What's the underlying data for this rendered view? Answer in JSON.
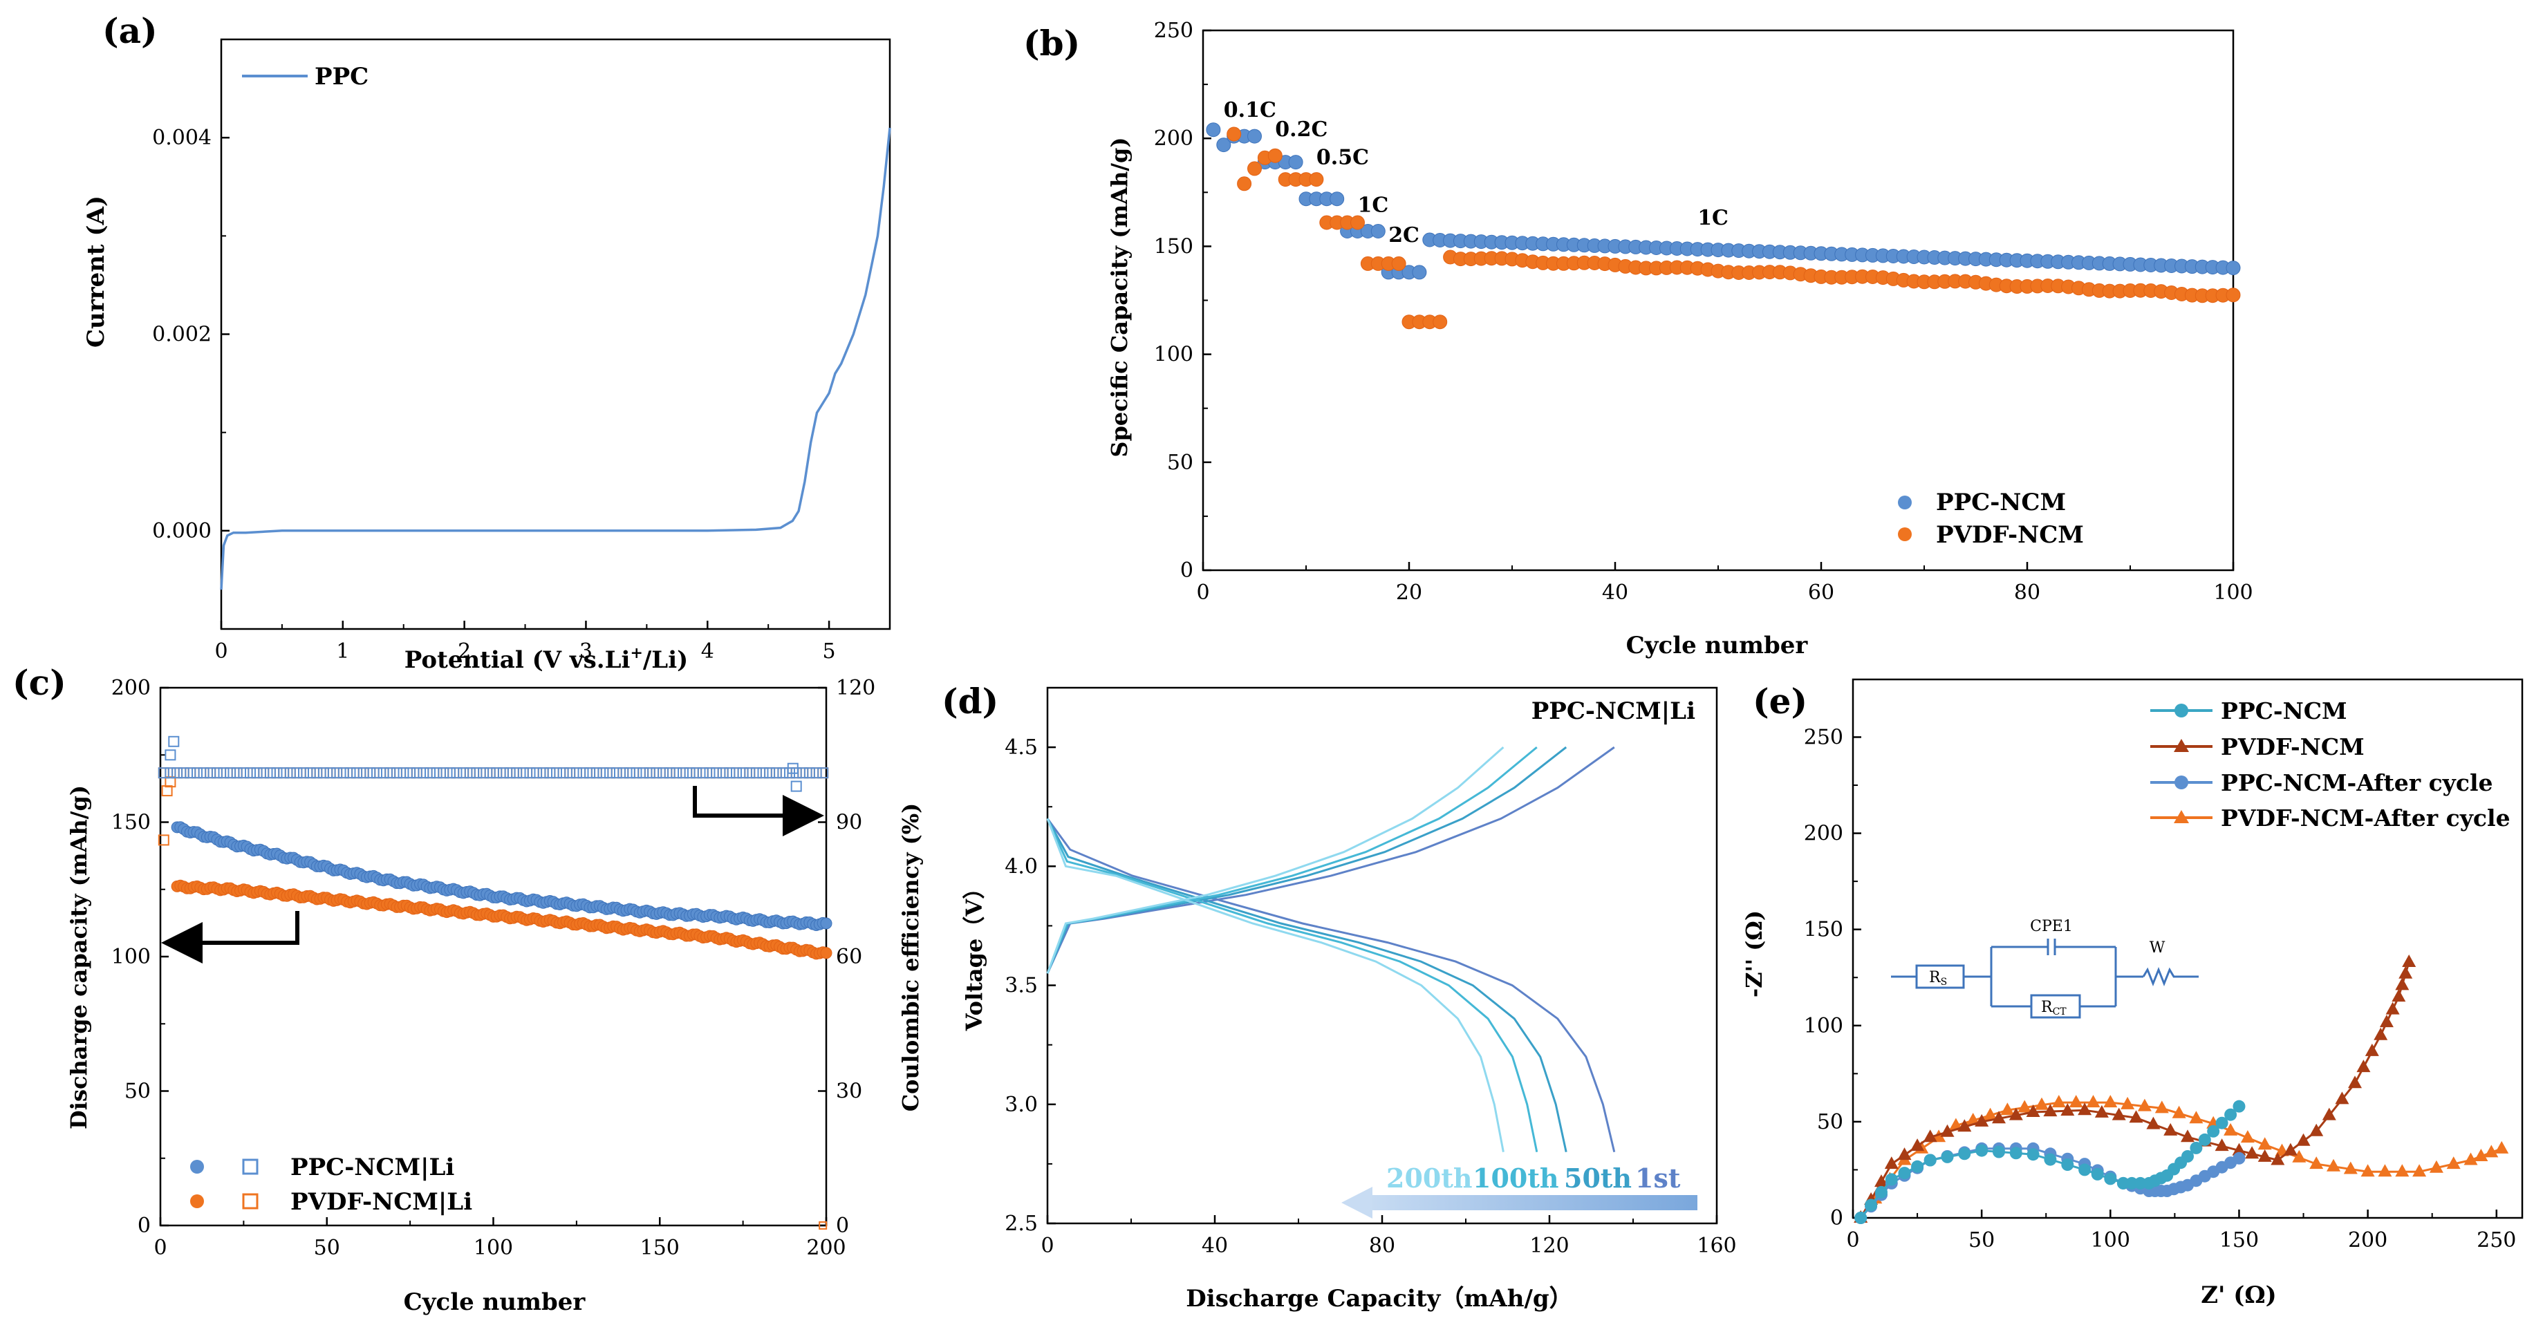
{
  "colors": {
    "axis": "#000000",
    "ppc_blue": "#5b8fd0",
    "ppc_blue_dark": "#3f74bb",
    "pvdf_orange": "#ef7420",
    "pvdf_orange_dark": "#e26316",
    "cyan": "#3aa6c4",
    "brown": "#a83c14",
    "d_light": "#8fd9ef",
    "d_mid": "#45b8d6",
    "d_dark": "#5e82c8",
    "arrow_grad_start": "#c8dcf3",
    "arrow_grad_end": "#7aa7dc"
  },
  "chart_data": [
    {
      "panel": "(a)",
      "type": "line",
      "xlabel": "Potential (V vs.Li",
      "xlabel_sup": "+",
      "xlabel_tail": "/Li)",
      "ylabel": "Current (A)",
      "xlim": [
        0,
        5.5
      ],
      "ylim": [
        -0.001,
        0.005
      ],
      "xticks": [
        0,
        1,
        2,
        3,
        4,
        5
      ],
      "xtick_labels": [
        "0",
        "1",
        "2",
        "3",
        "4",
        "5"
      ],
      "yticks": [
        0,
        0.002,
        0.004
      ],
      "ytick_labels": [
        "0.000",
        "0.002",
        "0.004"
      ],
      "legend": [
        "PPC"
      ],
      "series": [
        {
          "name": "PPC",
          "x": [
            0.0,
            0.02,
            0.05,
            0.1,
            0.2,
            0.5,
            1.0,
            1.5,
            2.0,
            2.5,
            3.0,
            3.5,
            4.0,
            4.4,
            4.6,
            4.7,
            4.75,
            4.8,
            4.85,
            4.9,
            4.95,
            5.0,
            5.05,
            5.1,
            5.2,
            5.3,
            5.4,
            5.45,
            5.5
          ],
          "y": [
            -0.0006,
            -0.00015,
            -5e-05,
            -2e-05,
            -2e-05,
            0.0,
            0.0,
            0.0,
            0.0,
            0.0,
            0.0,
            0.0,
            0.0,
            1e-05,
            3e-05,
            0.0001,
            0.0002,
            0.0005,
            0.0009,
            0.0012,
            0.0013,
            0.0014,
            0.0016,
            0.0017,
            0.002,
            0.0024,
            0.003,
            0.0035,
            0.0041
          ]
        }
      ]
    },
    {
      "panel": "(b)",
      "type": "scatter",
      "xlabel": "Cycle number",
      "ylabel": "Specific Capacity (mAh/g)",
      "xlim": [
        0,
        100
      ],
      "ylim": [
        0,
        250
      ],
      "xticks": [
        0,
        20,
        40,
        60,
        80,
        100
      ],
      "xtick_labels": [
        "0",
        "20",
        "40",
        "60",
        "80",
        "100"
      ],
      "yticks": [
        0,
        50,
        100,
        150,
        200,
        250
      ],
      "ytick_labels": [
        "0",
        "50",
        "100",
        "150",
        "200",
        "250"
      ],
      "legend": [
        "PPC-NCM",
        "PVDF-NCM"
      ],
      "annotations": [
        {
          "text": "0.1C",
          "x": 2,
          "y": 210
        },
        {
          "text": "0.2C",
          "x": 7,
          "y": 201
        },
        {
          "text": "0.5C",
          "x": 11,
          "y": 188
        },
        {
          "text": "1C",
          "x": 15,
          "y": 166
        },
        {
          "text": "2C",
          "x": 18,
          "y": 152
        },
        {
          "text": "1C",
          "x": 48,
          "y": 160
        }
      ],
      "series": [
        {
          "name": "PPC-NCM",
          "segments": [
            {
              "from": 1,
              "to": 1,
              "start": 204,
              "end": 204
            },
            {
              "from": 2,
              "to": 2,
              "start": 197,
              "end": 197
            },
            {
              "from": 3,
              "to": 5,
              "start": 201,
              "end": 201
            },
            {
              "from": 6,
              "to": 9,
              "start": 189,
              "end": 189
            },
            {
              "from": 10,
              "to": 13,
              "start": 172,
              "end": 172
            },
            {
              "from": 14,
              "to": 17,
              "start": 157,
              "end": 157
            },
            {
              "from": 18,
              "to": 21,
              "start": 138,
              "end": 138
            },
            {
              "from": 22,
              "to": 100,
              "start": 153,
              "end": 140
            }
          ]
        },
        {
          "name": "PVDF-NCM",
          "segments": [
            {
              "from": 3,
              "to": 3,
              "start": 202,
              "end": 202
            },
            {
              "from": 4,
              "to": 4,
              "start": 179,
              "end": 179
            },
            {
              "from": 5,
              "to": 5,
              "start": 186,
              "end": 186
            },
            {
              "from": 6,
              "to": 7,
              "start": 191,
              "end": 192
            },
            {
              "from": 8,
              "to": 11,
              "start": 181,
              "end": 181
            },
            {
              "from": 12,
              "to": 15,
              "start": 161,
              "end": 161
            },
            {
              "from": 16,
              "to": 19,
              "start": 142,
              "end": 142
            },
            {
              "from": 20,
              "to": 23,
              "start": 115,
              "end": 115
            },
            {
              "from": 24,
              "to": 100,
              "start": 145,
              "end": 127
            }
          ]
        }
      ]
    },
    {
      "panel": "(c)",
      "type": "scatter",
      "xlabel": "Cycle number",
      "ylabel": "Discharge capacity (mAh/g)",
      "ylabel_right": "Coulombic efficiency (%)",
      "xlim": [
        0,
        200
      ],
      "ylim": [
        0,
        200
      ],
      "ylim_right": [
        0,
        120
      ],
      "xticks": [
        0,
        50,
        100,
        150,
        200
      ],
      "xtick_labels": [
        "0",
        "50",
        "100",
        "150",
        "200"
      ],
      "yticks": [
        0,
        50,
        100,
        150,
        200
      ],
      "ytick_labels": [
        "0",
        "50",
        "100",
        "150",
        "200"
      ],
      "yticks_right": [
        0,
        30,
        60,
        90,
        120
      ],
      "ytick_labels_right": [
        "0",
        "30",
        "60",
        "90",
        "120"
      ],
      "legend": [
        "PPC-NCM|Li",
        "PVDF-NCM|Li"
      ],
      "series": [
        {
          "name": "PPC-NCM|Li capacity",
          "from": 5,
          "to": 200,
          "values": [
            148,
            142,
            137,
            132,
            128,
            125,
            122,
            120,
            118,
            116,
            115,
            113,
            112
          ]
        },
        {
          "name": "PVDF-NCM|Li capacity",
          "from": 5,
          "to": 200,
          "values": [
            126,
            125,
            123,
            121,
            119,
            117,
            115,
            113,
            111,
            109,
            107,
            104,
            101
          ]
        },
        {
          "name": "PPC-NCM|Li efficiency",
          "from": 1,
          "to": 200,
          "values": [
            101,
            101,
            101,
            101,
            101
          ],
          "outliers": [
            {
              "x": 3,
              "y": 105
            },
            {
              "x": 4,
              "y": 108
            },
            {
              "x": 190,
              "y": 102
            },
            {
              "x": 191,
              "y": 98
            }
          ]
        },
        {
          "name": "PVDF-NCM|Li efficiency",
          "from": 1,
          "to": 200,
          "values": [
            101,
            101,
            101,
            101,
            101
          ],
          "outliers": [
            {
              "x": 1,
              "y": 86
            },
            {
              "x": 2,
              "y": 97
            },
            {
              "x": 3,
              "y": 99
            }
          ]
        }
      ]
    },
    {
      "panel": "(d)",
      "type": "line",
      "title": "PPC-NCM|Li",
      "xlabel": "Discharge Capacity（mAh/g）",
      "ylabel": "Voltage（V）",
      "xlim": [
        0,
        160
      ],
      "ylim": [
        2.5,
        4.75
      ],
      "xticks": [
        0,
        40,
        80,
        120,
        160
      ],
      "xtick_labels": [
        "0",
        "40",
        "80",
        "120",
        "160"
      ],
      "yticks": [
        2.5,
        3.0,
        3.5,
        4.0,
        4.5
      ],
      "ytick_labels": [
        "2.5",
        "3.0",
        "3.5",
        "4.0",
        "4.5"
      ],
      "legend": [
        "200th",
        "100th",
        "50th",
        "1st"
      ],
      "series": [
        {
          "name": "1st",
          "qmax": 135.5
        },
        {
          "name": "50th",
          "qmax": 124
        },
        {
          "name": "100th",
          "qmax": 117
        },
        {
          "name": "200th",
          "qmax": 109
        }
      ]
    },
    {
      "panel": "(e)",
      "type": "scatter",
      "xlabel": "Z' (Ω)",
      "ylabel": "-Z'' (Ω)",
      "xlim": [
        0,
        260
      ],
      "ylim": [
        0,
        280
      ],
      "xticks": [
        0,
        50,
        100,
        150,
        200,
        250
      ],
      "xtick_labels": [
        "0",
        "50",
        "100",
        "150",
        "200",
        "250"
      ],
      "yticks": [
        0,
        50,
        100,
        150,
        200,
        250
      ],
      "ytick_labels": [
        "0",
        "50",
        "100",
        "150",
        "200",
        "250"
      ],
      "legend": [
        "PPC-NCM",
        "PVDF-NCM",
        "PPC-NCM-After cycle",
        "PVDF-NCM-After cycle"
      ],
      "circuit_labels": {
        "r1": "R",
        "r1_sub": "S",
        "cpe": "CPE1",
        "r2": "R",
        "r2_sub": "CT",
        "w": "W"
      },
      "series": [
        {
          "name": "PPC-NCM",
          "x": [
            3,
            15,
            30,
            50,
            70,
            90,
            105,
            115,
            122,
            130,
            140,
            150
          ],
          "y": [
            0,
            20,
            30,
            35,
            33,
            25,
            18,
            18,
            22,
            32,
            45,
            58
          ]
        },
        {
          "name": "PVDF-NCM",
          "x": [
            3,
            15,
            30,
            50,
            70,
            90,
            110,
            130,
            150,
            165,
            180,
            195,
            205,
            212,
            216
          ],
          "y": [
            0,
            28,
            42,
            50,
            55,
            56,
            52,
            42,
            35,
            30,
            45,
            70,
            95,
            115,
            133
          ]
        },
        {
          "name": "PPC-NCM-After cycle",
          "x": [
            3,
            15,
            30,
            50,
            70,
            90,
            105,
            115,
            122,
            130,
            140,
            150
          ],
          "y": [
            0,
            18,
            30,
            36,
            36,
            28,
            18,
            14,
            14,
            17,
            24,
            31
          ]
        },
        {
          "name": "PVDF-NCM-After cycle",
          "x": [
            3,
            20,
            40,
            60,
            80,
            100,
            120,
            140,
            160,
            180,
            200,
            220,
            240,
            252
          ],
          "y": [
            0,
            30,
            48,
            56,
            60,
            60,
            57,
            49,
            38,
            28,
            24,
            24,
            30,
            36
          ]
        }
      ]
    }
  ]
}
